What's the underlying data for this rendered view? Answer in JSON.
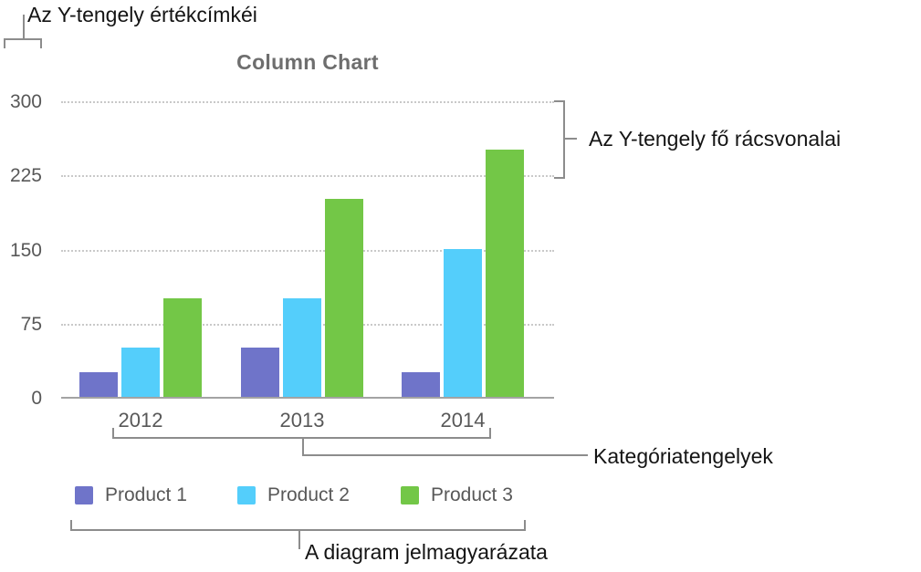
{
  "annotations": {
    "y_value_labels": "Az Y-tengely értékcímkéi",
    "y_gridlines": "Az Y-tengely fő rácsvonalai",
    "category_axes": "Kategóriatengelyek",
    "legend": "A diagram jelmagyarázata"
  },
  "chart_data": {
    "type": "bar",
    "title": "Column Chart",
    "categories": [
      "2012",
      "2013",
      "2014"
    ],
    "series": [
      {
        "name": "Product 1",
        "color": "#6F74C9",
        "values": [
          25,
          50,
          25
        ]
      },
      {
        "name": "Product 2",
        "color": "#54CEFB",
        "values": [
          50,
          100,
          150
        ]
      },
      {
        "name": "Product 3",
        "color": "#73C747",
        "values": [
          100,
          200,
          250
        ]
      }
    ],
    "y_ticks": [
      0,
      75,
      150,
      225,
      300
    ],
    "ylim": [
      0,
      300
    ],
    "xlabel": "",
    "ylabel": "",
    "grid": "horizontal-dotted",
    "legend_position": "bottom"
  },
  "colors": {
    "product1": "#6F74C9",
    "product2": "#54CEFB",
    "product3": "#73C747",
    "gridline": "#C9C9C9",
    "axis_line": "#A3A3A3",
    "bracket": "#8C8C8C",
    "chart_text": "#585858",
    "title_text": "#6E6E6E",
    "annotation_text": "#141414"
  }
}
